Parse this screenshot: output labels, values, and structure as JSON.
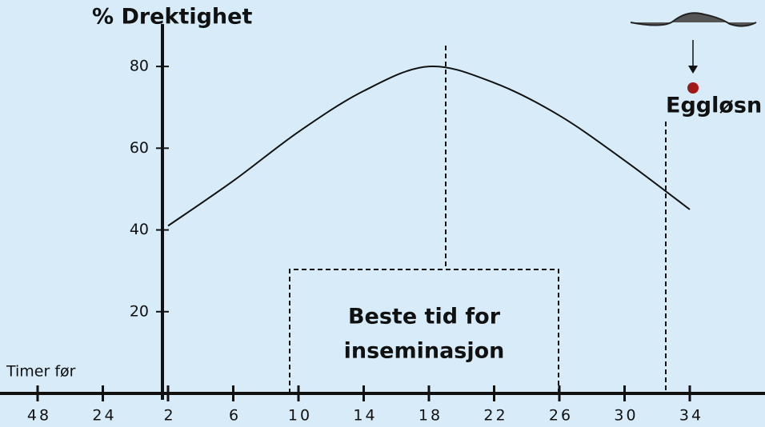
{
  "chart_data": {
    "type": "line",
    "title": "% Drektighet",
    "x_label": "Timer før",
    "categories": [
      "48",
      "24",
      "2",
      "6",
      "10",
      "14",
      "18",
      "22",
      "26",
      "30",
      "34"
    ],
    "series": [
      {
        "name": null,
        "color": "#111111",
        "values": [
          null,
          null,
          41,
          52,
          64,
          74,
          80,
          76,
          68,
          57,
          45
        ]
      }
    ],
    "ylim": [
      0,
      90
    ],
    "yticks": [
      20,
      40,
      60,
      80
    ],
    "annotations": {
      "insemination": [
        "Beste tid for",
        "inseminasjon"
      ],
      "ovulation": "Eggløsn"
    }
  }
}
